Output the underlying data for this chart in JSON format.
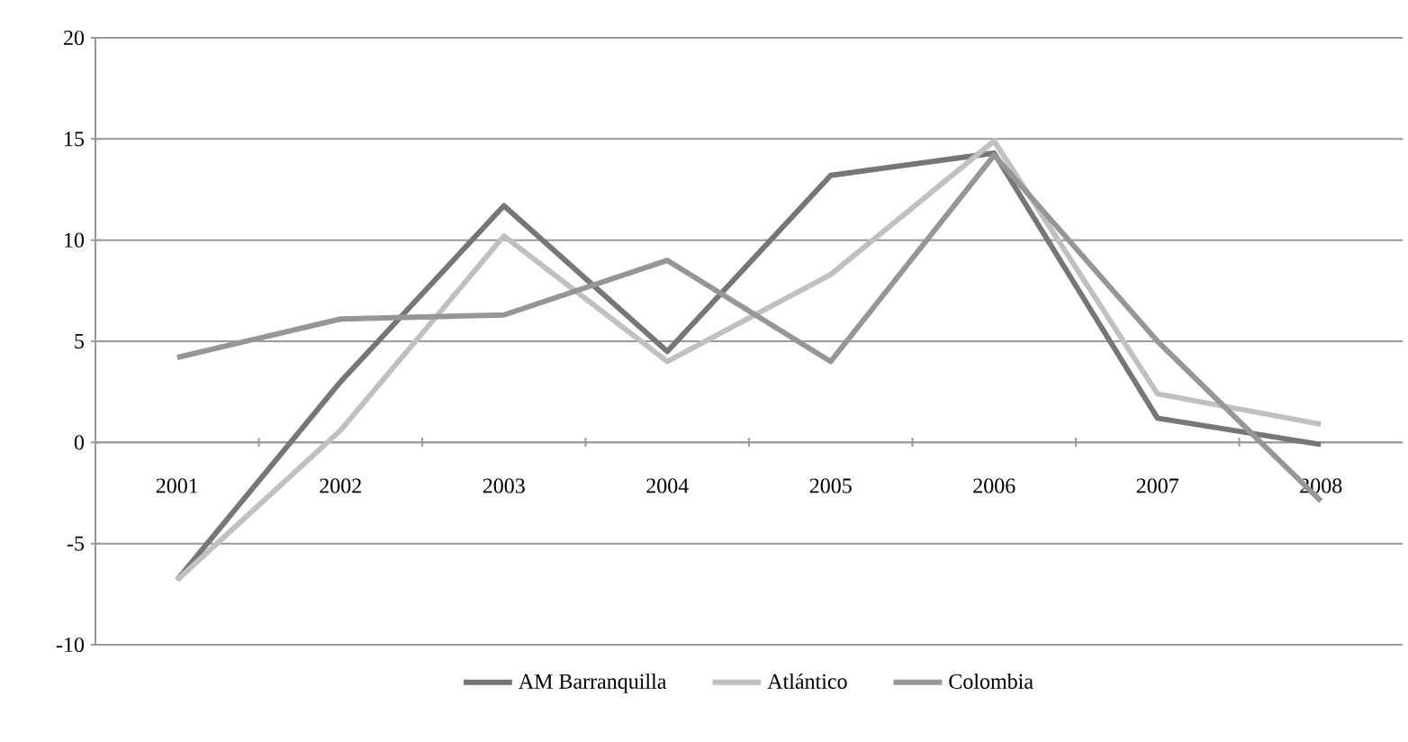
{
  "chart_data": {
    "type": "line",
    "categories": [
      "2001",
      "2002",
      "2003",
      "2004",
      "2005",
      "2006",
      "2007",
      "2008"
    ],
    "series": [
      {
        "name": "AM Barranquilla",
        "color": "#767676",
        "values": [
          -6.8,
          3.0,
          11.7,
          4.5,
          13.2,
          14.3,
          1.2,
          -0.1
        ]
      },
      {
        "name": "Atlántico",
        "color": "#c0c0c0",
        "values": [
          -6.8,
          0.6,
          10.2,
          4.0,
          8.3,
          14.9,
          2.4,
          0.9
        ]
      },
      {
        "name": "Colombia",
        "color": "#969696",
        "values": [
          4.2,
          6.1,
          6.3,
          9.0,
          4.0,
          14.2,
          5.0,
          -2.9
        ]
      }
    ],
    "ylim": [
      -10,
      20
    ],
    "yticks": [
      -10,
      -5,
      0,
      5,
      10,
      15,
      20
    ],
    "grid": "y",
    "legend": "bottom",
    "marker": "none",
    "line_style": "solid"
  }
}
